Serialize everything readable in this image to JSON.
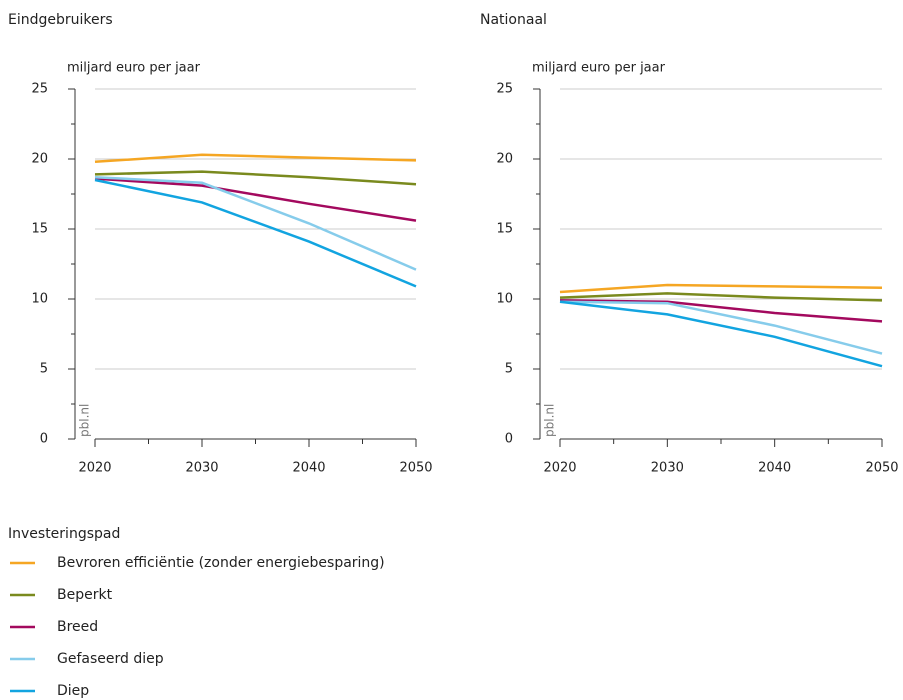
{
  "chart_data": [
    {
      "type": "line",
      "title": "Eindgebruikers",
      "ylabel": "miljard euro per jaar",
      "watermark": "pbl.nl",
      "x": [
        2020,
        2030,
        2040,
        2050
      ],
      "xlim": [
        2020,
        2050
      ],
      "xticks": [
        2020,
        2030,
        2040,
        2050
      ],
      "ylim": [
        0,
        25
      ],
      "yticks": [
        0,
        5,
        10,
        15,
        20,
        25
      ],
      "grid": true,
      "series": [
        {
          "name": "Bevroren efficiëntie (zonder energiebesparing)",
          "color": "#f5a623",
          "values": [
            19.8,
            20.3,
            20.1,
            19.9
          ]
        },
        {
          "name": "Beperkt",
          "color": "#7a8a1e",
          "values": [
            18.9,
            19.1,
            18.7,
            18.2
          ]
        },
        {
          "name": "Breed",
          "color": "#a3095e",
          "values": [
            18.6,
            18.1,
            16.8,
            15.6
          ]
        },
        {
          "name": "Gefaseerd diep",
          "color": "#86cceb",
          "values": [
            18.7,
            18.3,
            15.4,
            12.1
          ]
        },
        {
          "name": "Diep",
          "color": "#12a4e0",
          "values": [
            18.5,
            16.9,
            14.1,
            10.9
          ]
        }
      ]
    },
    {
      "type": "line",
      "title": "Nationaal",
      "ylabel": "miljard euro per jaar",
      "watermark": "pbl.nl",
      "x": [
        2020,
        2030,
        2040,
        2050
      ],
      "xlim": [
        2020,
        2050
      ],
      "xticks": [
        2020,
        2030,
        2040,
        2050
      ],
      "ylim": [
        0,
        25
      ],
      "yticks": [
        0,
        5,
        10,
        15,
        20,
        25
      ],
      "grid": true,
      "series": [
        {
          "name": "Bevroren efficiëntie (zonder energiebesparing)",
          "color": "#f5a623",
          "values": [
            10.5,
            11.0,
            10.9,
            10.8
          ]
        },
        {
          "name": "Beperkt",
          "color": "#7a8a1e",
          "values": [
            10.1,
            10.4,
            10.1,
            9.9
          ]
        },
        {
          "name": "Breed",
          "color": "#a3095e",
          "values": [
            9.9,
            9.8,
            9.0,
            8.4
          ]
        },
        {
          "name": "Gefaseerd diep",
          "color": "#86cceb",
          "values": [
            9.8,
            9.7,
            8.1,
            6.1
          ]
        },
        {
          "name": "Diep",
          "color": "#12a4e0",
          "values": [
            9.8,
            8.9,
            7.3,
            5.2
          ]
        }
      ]
    }
  ],
  "legend": {
    "title": "Investeringspad"
  }
}
